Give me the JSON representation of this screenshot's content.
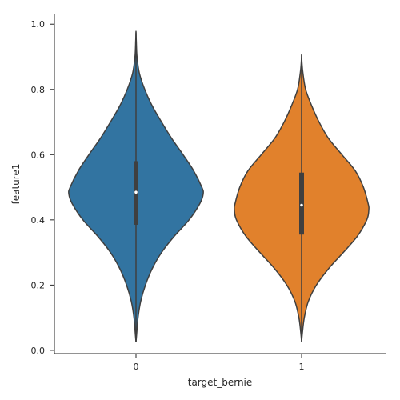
{
  "chart_data": {
    "type": "violin",
    "xlabel": "target_bernie",
    "ylabel": "feature1",
    "categories": [
      "0",
      "1"
    ],
    "yticks": [
      "0.0",
      "0.2",
      "0.4",
      "0.6",
      "0.8",
      "1.0"
    ],
    "ylim": [
      -0.01,
      1.03
    ],
    "grid": false,
    "series": [
      {
        "category": "0",
        "color": "#3274a1",
        "min": 0.025,
        "max": 0.975,
        "q1": 0.385,
        "median": 0.485,
        "q3": 0.58,
        "density_profile": [
          [
            0.025,
            0.0
          ],
          [
            0.05,
            0.01
          ],
          [
            0.1,
            0.03
          ],
          [
            0.15,
            0.07
          ],
          [
            0.2,
            0.14
          ],
          [
            0.25,
            0.24
          ],
          [
            0.3,
            0.38
          ],
          [
            0.35,
            0.57
          ],
          [
            0.4,
            0.79
          ],
          [
            0.45,
            0.95
          ],
          [
            0.48,
            1.0
          ],
          [
            0.5,
            0.98
          ],
          [
            0.55,
            0.86
          ],
          [
            0.6,
            0.7
          ],
          [
            0.65,
            0.53
          ],
          [
            0.7,
            0.38
          ],
          [
            0.75,
            0.24
          ],
          [
            0.8,
            0.13
          ],
          [
            0.85,
            0.05
          ],
          [
            0.9,
            0.015
          ],
          [
            0.95,
            0.004
          ],
          [
            0.975,
            0.0
          ]
        ]
      },
      {
        "category": "1",
        "color": "#e1812c",
        "min": 0.025,
        "max": 0.905,
        "q1": 0.355,
        "median": 0.445,
        "q3": 0.545,
        "density_profile": [
          [
            0.025,
            0.0
          ],
          [
            0.05,
            0.01
          ],
          [
            0.1,
            0.04
          ],
          [
            0.15,
            0.1
          ],
          [
            0.2,
            0.22
          ],
          [
            0.25,
            0.4
          ],
          [
            0.3,
            0.62
          ],
          [
            0.35,
            0.83
          ],
          [
            0.4,
            0.97
          ],
          [
            0.43,
            1.0
          ],
          [
            0.45,
            0.99
          ],
          [
            0.5,
            0.92
          ],
          [
            0.55,
            0.8
          ],
          [
            0.6,
            0.6
          ],
          [
            0.65,
            0.4
          ],
          [
            0.7,
            0.26
          ],
          [
            0.75,
            0.15
          ],
          [
            0.8,
            0.06
          ],
          [
            0.85,
            0.02
          ],
          [
            0.88,
            0.006
          ],
          [
            0.905,
            0.0
          ]
        ]
      }
    ]
  }
}
